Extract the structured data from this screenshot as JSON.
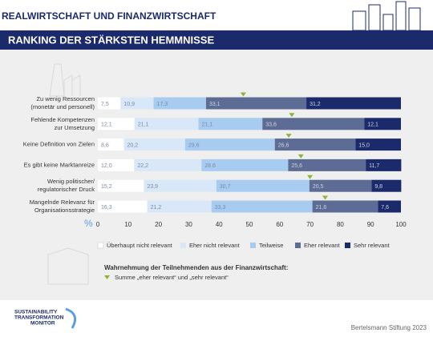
{
  "header": {
    "title": "REALWIRTSCHAFT UND FINANZWIRTSCHAFT"
  },
  "chart_data": {
    "type": "bar",
    "orientation": "horizontal",
    "stacked": true,
    "title": "RANKING DER STÄRKSTEN HEMMNISSE",
    "categories": [
      [
        "Zu wenig Ressourcen",
        "(monetär und personell)"
      ],
      [
        "Fehlende Kompetenzen",
        "zur Umsetzung"
      ],
      [
        "Keine Definition von Zielen"
      ],
      [
        "Es gibt keine Marktanreize"
      ],
      [
        "Wenig politischer/",
        "regulatorischer Druck"
      ],
      [
        "Mangelnde Relevanz für",
        "Organisationsstrategie"
      ]
    ],
    "series": [
      {
        "name": "Überhaupt nicht relevant",
        "color": "#ffffff",
        "values": [
          7.5,
          12.1,
          8.6,
          12.0,
          15.2,
          16.3
        ],
        "value_labels": [
          "7,5",
          "12,1",
          "8,6",
          "12,0",
          "15,2",
          "16,3"
        ]
      },
      {
        "name": "Eher nicht relevant",
        "color": "#d8e8f8",
        "values": [
          10.9,
          21.1,
          20.2,
          22.2,
          23.9,
          21.2
        ],
        "value_labels": [
          "10,9",
          "21,1",
          "20,2",
          "22,2",
          "23,9",
          "21,2"
        ]
      },
      {
        "name": "Teilweise",
        "color": "#a8ccf0",
        "values": [
          17.3,
          21.1,
          29.6,
          28.6,
          30.7,
          33.3
        ],
        "value_labels": [
          "17,3",
          "21,1",
          "29,6",
          "28,6",
          "30,7",
          "33,3"
        ]
      },
      {
        "name": "Eher relevant",
        "color": "#5d6c95",
        "values": [
          33.1,
          33.6,
          26.6,
          25.6,
          20.5,
          21.6
        ],
        "value_labels": [
          "33,1",
          "33,6",
          "26,6",
          "25,6",
          "20,5",
          "21,6"
        ]
      },
      {
        "name": "Sehr relevant",
        "color": "#1b2a6b",
        "values": [
          31.2,
          12.1,
          15.0,
          11.7,
          9.8,
          7.6
        ],
        "value_labels": [
          "31,2",
          "12,1",
          "15,0",
          "11,7",
          "9,8",
          "7,6"
        ]
      }
    ],
    "legend_title": "Wahrnehmung der Teilnehmenden aus der Finanzwirtschaft:",
    "markers": {
      "name": "Summe „eher relevant“ und „sehr relevant“",
      "color": "#8db33a",
      "values": [
        48,
        64,
        63,
        67,
        70,
        75
      ]
    },
    "unit": "%",
    "xlim": [
      0,
      100
    ],
    "xticks": [
      0,
      10,
      20,
      30,
      40,
      50,
      60,
      70,
      80,
      90,
      100
    ]
  },
  "footer": {
    "logo": [
      "SUSTAINABILITY",
      "TRANSFORMATION",
      "MONITOR"
    ],
    "source": "Bertelsmann Stiftung 2023"
  }
}
